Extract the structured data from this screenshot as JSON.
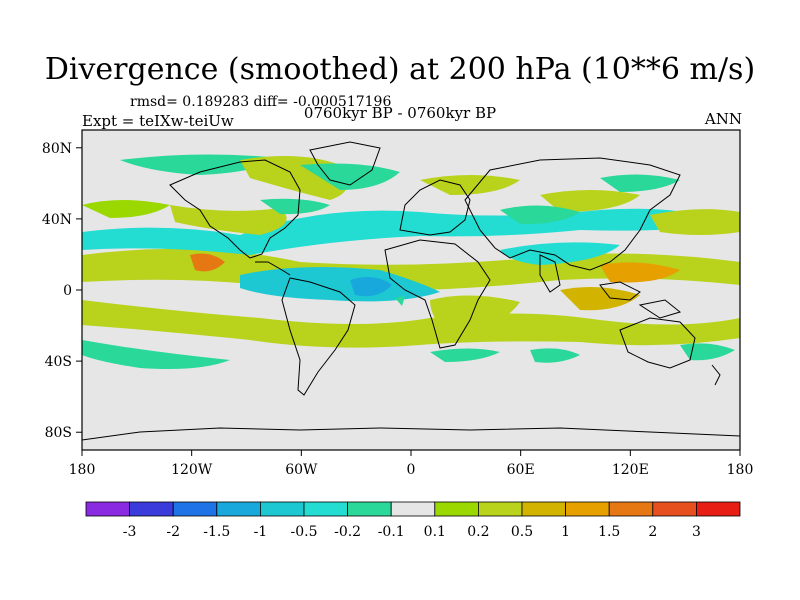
{
  "title": "Divergence (smoothed) at 200 hPa (10**6 m/s)",
  "stats": "rmsd= 0.189283 diff= -0.000517196",
  "expt": "Expt = teIXw-teiUw",
  "period": "0760kyr BP - 0760kyr BP",
  "season": "ANN",
  "map": {
    "lon_range": [
      -180,
      180
    ],
    "lat_range": [
      -90,
      90
    ],
    "x_ticks": [
      "180",
      "120W",
      "60W",
      "0",
      "60E",
      "120E",
      "180"
    ],
    "y_ticks": [
      "80N",
      "40N",
      "0",
      "40S",
      "80S"
    ],
    "background": "#e6e6e6"
  },
  "colorbar": {
    "colors": [
      "#8a2be2",
      "#3b3bdc",
      "#1e73e6",
      "#18a8dc",
      "#1ec8d2",
      "#23dcd2",
      "#2ad89a",
      "#e6e6e6",
      "#9bd800",
      "#b9d21c",
      "#d2b400",
      "#e6a000",
      "#e67814",
      "#e6501e",
      "#e61e14"
    ],
    "labels": [
      "-3",
      "-2",
      "-1.5",
      "-1",
      "-0.5",
      "-0.2",
      "-0.1",
      "0.1",
      "0.2",
      "0.5",
      "1",
      "1.5",
      "2",
      "3"
    ]
  }
}
